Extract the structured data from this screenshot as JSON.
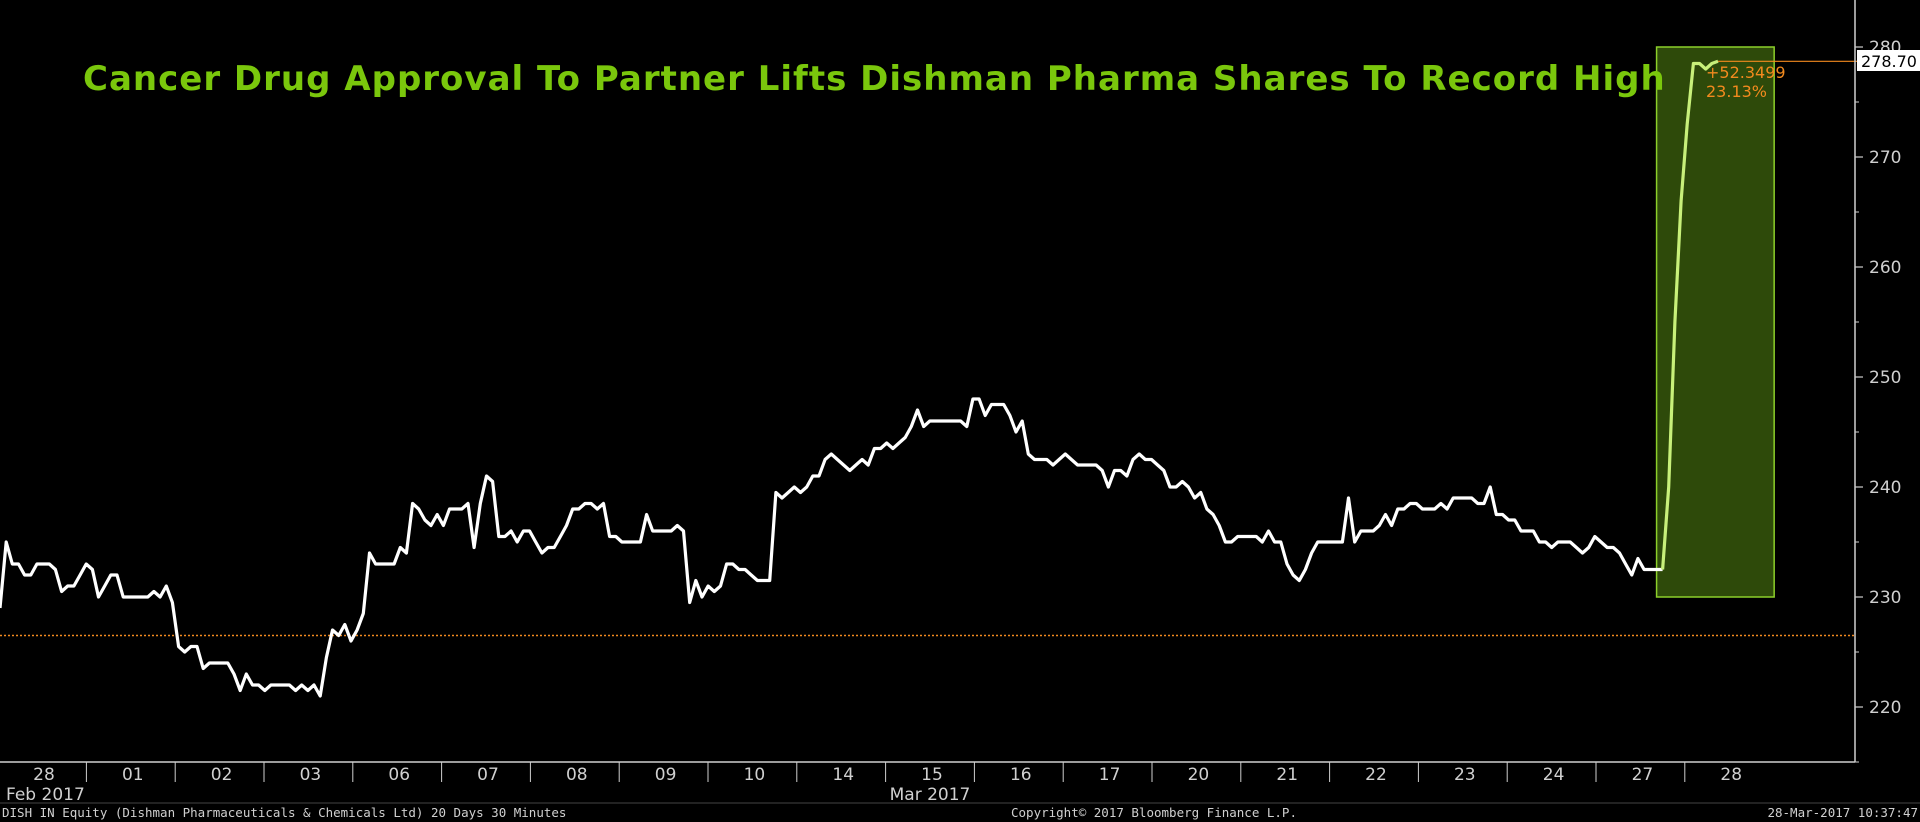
{
  "chart_data": {
    "type": "line",
    "title": "Cancer Drug Approval To Partner Lifts Dishman Pharma Shares To Record High",
    "xlabel": "",
    "ylabel": "",
    "ylim": [
      215,
      281
    ],
    "yticks": [
      220,
      230,
      240,
      250,
      260,
      270,
      280
    ],
    "grid": false,
    "x_tick_labels": [
      "28",
      "01",
      "02",
      "03",
      "06",
      "07",
      "08",
      "09",
      "10",
      "14",
      "15",
      "16",
      "17",
      "20",
      "21",
      "22",
      "23",
      "24",
      "27",
      "28"
    ],
    "x_period_labels": [
      "Feb 2017",
      "Mar 2017"
    ],
    "series": [
      {
        "color": "#ffffff",
        "values": [
          229,
          235,
          233,
          233,
          232,
          232,
          233,
          233,
          233,
          232.5,
          230.5,
          231,
          231,
          232,
          233,
          232.5,
          230,
          231,
          232,
          232,
          230,
          230,
          230,
          230,
          230,
          230.5,
          230,
          231,
          229.5,
          225.5,
          225,
          225.5,
          225.5,
          223.5,
          224,
          224,
          224,
          224,
          223,
          221.5,
          223,
          222,
          222,
          221.5,
          222,
          222,
          222,
          222,
          221.5,
          222,
          221.5,
          222,
          221,
          224.5,
          227,
          226.5,
          227.5,
          226,
          227,
          228.5,
          234,
          233,
          233,
          233,
          233,
          234.5,
          234,
          238.5,
          238,
          237,
          236.5,
          237.5,
          236.5,
          238,
          238,
          238,
          238.5,
          234.5,
          238.5,
          241,
          240.5,
          235.5,
          235.5,
          236,
          235,
          236,
          236,
          235,
          234,
          234.5,
          234.5,
          235.5,
          236.5,
          238,
          238,
          238.5,
          238.5,
          238,
          238.5,
          235.5,
          235.5,
          235,
          235,
          235,
          235,
          237.5,
          236,
          236,
          236,
          236,
          236.5,
          236,
          229.5,
          231.5,
          230,
          231,
          230.5,
          231,
          233,
          233,
          232.5,
          232.5,
          232,
          231.5,
          231.5,
          231.5,
          239.5,
          239,
          239.5,
          240,
          239.5,
          240,
          241,
          241,
          242.5,
          243,
          242.5,
          242,
          241.5,
          242,
          242.5,
          242,
          243.5,
          243.5,
          244,
          243.5,
          244,
          244.5,
          245.5,
          247,
          245.5,
          246,
          246,
          246,
          246,
          246,
          246,
          245.5,
          248,
          248,
          246.5,
          247.5,
          247.5,
          247.5,
          246.5,
          245,
          246,
          243,
          242.5,
          242.5,
          242.5,
          242,
          242.5,
          243,
          242.5,
          242,
          242,
          242,
          242,
          241.5,
          240,
          241.5,
          241.5,
          241,
          242.5,
          243,
          242.5,
          242.5,
          242,
          241.5,
          240,
          240,
          240.5,
          240,
          239,
          239.5,
          238,
          237.5,
          236.5,
          235,
          235,
          235.5,
          235.5,
          235.5,
          235.5,
          235,
          236,
          235,
          235,
          233,
          232,
          231.5,
          232.5,
          234,
          235,
          235,
          235,
          235,
          235,
          239,
          235,
          236,
          236,
          236,
          236.5,
          237.5,
          236.5,
          238,
          238,
          238.5,
          238.5,
          238,
          238,
          238,
          238.5,
          238,
          239,
          239,
          239,
          239,
          238.5,
          238.5,
          240,
          237.5,
          237.5,
          237,
          237,
          236,
          236,
          236,
          235,
          235,
          234.5,
          235,
          235,
          235,
          234.5,
          234,
          234.5,
          235.5,
          235,
          234.5,
          234.5,
          234,
          233,
          232,
          233.5,
          232.5,
          232.5,
          232.5,
          232.5,
          240,
          255,
          266,
          273,
          278.5,
          278.5,
          278,
          278.5,
          278.7
        ]
      }
    ],
    "highlight": {
      "color": "#c8f07a",
      "start_index": 270,
      "end_index": 280,
      "value_range": [
        230,
        280
      ],
      "change_label": "+52.3499",
      "change_pct_label": "23.13%"
    },
    "last_value_label": "278.70",
    "reference_level": 226.5,
    "reference_color": "#f28a1e",
    "footer_left": "DISH IN Equity (Dishman Pharmaceuticals & Chemicals Ltd) 20 Days 30 Minutes",
    "footer_center": "Copyright© 2017 Bloomberg Finance L.P.",
    "footer_right": "28-Mar-2017 10:37:47"
  }
}
